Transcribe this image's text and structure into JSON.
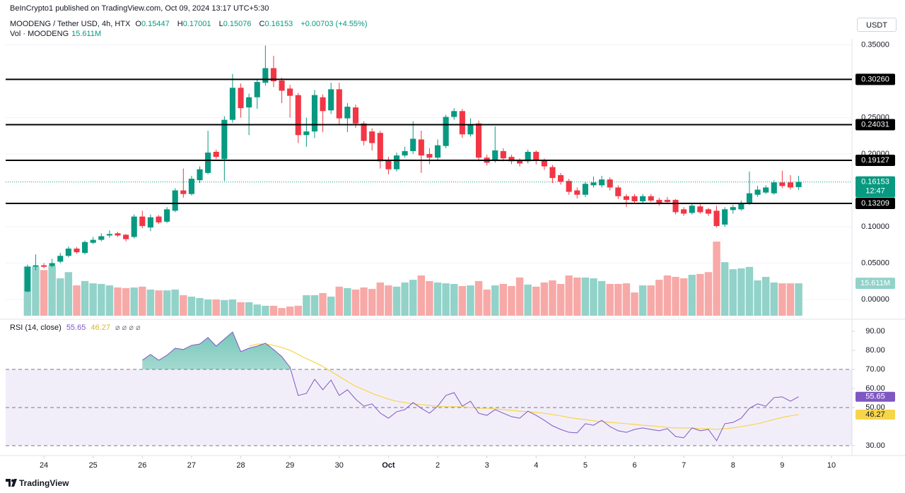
{
  "header": {
    "published": "BeInCrypto1 published on TradingView.com, Oct 09, 2024 13:17 UTC+5:30",
    "symbol": "MOODENG / Tether USD, 4h, HTX",
    "ohlc_labels": [
      "O",
      "H",
      "L",
      "C"
    ],
    "change": "+0.00703 (+4.55%)",
    "currency": "USDT"
  },
  "footer": {
    "brand": "TradingView"
  },
  "chart_data": [
    {
      "type": "candlestick",
      "xlim": [
        -2.66,
        100.5
      ],
      "ylim": [
        -0.0252,
        0.3583
      ],
      "yticks": [
        {
          "value": 0,
          "label": "0.00000"
        },
        {
          "value": 0.05,
          "label": "0.05000"
        },
        {
          "value": 0.1,
          "label": "0.10000"
        },
        {
          "value": 0.2,
          "label": "0.20000"
        },
        {
          "value": 0.25,
          "label": "0.25000"
        },
        {
          "value": 0.35,
          "label": "0.35000"
        }
      ],
      "levels": [
        {
          "value": 0.3026,
          "label": "0.30260"
        },
        {
          "value": 0.24031,
          "label": "0.24031"
        },
        {
          "value": 0.19127,
          "label": "0.19127"
        },
        {
          "value": 0.13209,
          "label": "0.13209"
        }
      ],
      "countdown": "12:47",
      "series": [
        {
          "name": "MOODENG / Tether USD",
          "up_color": "#089981",
          "down_color": "#f23645",
          "open": [
            0.011,
            0.045,
            0.047,
            0.046,
            0.052,
            0.06,
            0.07,
            0.064,
            0.078,
            0.082,
            0.088,
            0.091,
            0.089,
            0.086,
            0.114,
            0.099,
            0.114,
            0.107,
            0.122,
            0.15,
            0.145,
            0.164,
            0.174,
            0.203,
            0.193,
            0.247,
            0.291,
            0.264,
            0.278,
            0.298,
            0.318,
            0.301,
            0.29,
            0.281,
            0.226,
            0.231,
            0.278,
            0.26,
            0.289,
            0.249,
            0.264,
            0.242,
            0.231,
            0.229,
            0.191,
            0.179,
            0.198,
            0.204,
            0.22,
            0.2,
            0.195,
            0.211,
            0.251,
            0.259,
            0.227,
            0.242,
            0.195,
            0.192,
            0.204,
            0.196,
            0.191,
            0.19,
            0.203,
            0.191,
            0.182,
            0.171,
            0.163,
            0.15,
            0.144,
            0.157,
            0.157,
            0.165,
            0.154,
            0.142,
            0.142,
            0.135,
            0.142,
            0.137,
            0.137,
            0.137,
            0.124,
            0.119,
            0.128,
            0.124,
            0.122,
            0.103,
            0.123,
            0.124,
            0.132,
            0.144,
            0.147,
            0.146,
            0.161,
            0.161,
            0.15447
          ],
          "high": [
            0.048,
            0.062,
            0.05,
            0.056,
            0.064,
            0.073,
            0.072,
            0.081,
            0.086,
            0.091,
            0.095,
            0.093,
            0.09,
            0.117,
            0.122,
            0.117,
            0.116,
            0.127,
            0.153,
            0.18,
            0.17,
            0.183,
            0.232,
            0.206,
            0.252,
            0.31,
            0.297,
            0.283,
            0.302,
            0.349,
            0.335,
            0.305,
            0.295,
            0.284,
            0.25,
            0.288,
            0.282,
            0.298,
            0.298,
            0.27,
            0.268,
            0.245,
            0.235,
            0.232,
            0.196,
            0.202,
            0.21,
            0.245,
            0.232,
            0.208,
            0.22,
            0.254,
            0.263,
            0.262,
            0.249,
            0.246,
            0.199,
            0.238,
            0.208,
            0.199,
            0.194,
            0.206,
            0.205,
            0.194,
            0.185,
            0.174,
            0.166,
            0.154,
            0.162,
            0.169,
            0.17,
            0.168,
            0.157,
            0.145,
            0.145,
            0.145,
            0.145,
            0.14,
            0.141,
            0.138,
            0.127,
            0.132,
            0.131,
            0.126,
            0.129,
            0.127,
            0.13,
            0.136,
            0.176,
            0.156,
            0.157,
            0.164,
            0.177,
            0.171,
            0.17001
          ],
          "low": [
            0.01,
            0.04,
            0.043,
            0.044,
            0.05,
            0.058,
            0.063,
            0.062,
            0.076,
            0.08,
            0.085,
            0.086,
            0.08,
            0.084,
            0.098,
            0.094,
            0.104,
            0.105,
            0.12,
            0.14,
            0.143,
            0.16,
            0.172,
            0.193,
            0.163,
            0.243,
            0.25,
            0.226,
            0.262,
            0.294,
            0.292,
            0.27,
            0.25,
            0.215,
            0.21,
            0.222,
            0.23,
            0.255,
            0.24,
            0.23,
            0.236,
            0.212,
            0.205,
            0.18,
            0.172,
            0.176,
            0.195,
            0.2,
            0.174,
            0.186,
            0.192,
            0.208,
            0.247,
            0.222,
            0.224,
            0.19,
            0.184,
            0.188,
            0.19,
            0.186,
            0.183,
            0.187,
            0.186,
            0.178,
            0.16,
            0.158,
            0.144,
            0.139,
            0.141,
            0.154,
            0.154,
            0.15,
            0.138,
            0.127,
            0.132,
            0.133,
            0.134,
            0.129,
            0.131,
            0.117,
            0.115,
            0.117,
            0.118,
            0.115,
            0.099,
            0.1,
            0.118,
            0.122,
            0.13,
            0.141,
            0.145,
            0.144,
            0.153,
            0.151,
            0.15076
          ],
          "close": [
            0.045,
            0.047,
            0.045,
            0.05,
            0.06,
            0.07,
            0.065,
            0.079,
            0.082,
            0.087,
            0.09,
            0.088,
            0.083,
            0.114,
            0.101,
            0.113,
            0.106,
            0.124,
            0.15,
            0.145,
            0.166,
            0.179,
            0.202,
            0.196,
            0.247,
            0.291,
            0.263,
            0.278,
            0.299,
            0.318,
            0.3,
            0.287,
            0.28,
            0.226,
            0.231,
            0.281,
            0.259,
            0.289,
            0.249,
            0.265,
            0.242,
            0.218,
            0.215,
            0.19,
            0.179,
            0.198,
            0.204,
            0.221,
            0.198,
            0.195,
            0.212,
            0.251,
            0.259,
            0.227,
            0.24,
            0.195,
            0.188,
            0.205,
            0.194,
            0.19,
            0.187,
            0.203,
            0.191,
            0.183,
            0.167,
            0.162,
            0.148,
            0.144,
            0.159,
            0.161,
            0.165,
            0.154,
            0.142,
            0.137,
            0.135,
            0.142,
            0.136,
            0.133,
            0.134,
            0.12,
            0.118,
            0.129,
            0.12,
            0.118,
            0.101,
            0.124,
            0.127,
            0.132,
            0.146,
            0.151,
            0.154,
            0.161,
            0.156,
            0.154,
            0.16153
          ]
        }
      ]
    },
    {
      "type": "bar",
      "title": "Vol · MOODENG",
      "legend_value": "15.611M",
      "up_color": "#92d2c9",
      "down_color": "#f7a9a7",
      "ylim": [
        0,
        50
      ],
      "values": [
        23.8,
        23.5,
        22,
        24,
        18,
        21,
        14.6,
        16.7,
        15.6,
        15.3,
        14.6,
        13.6,
        13.3,
        13.6,
        14,
        12.6,
        12.2,
        12.2,
        12.6,
        9.9,
        9.2,
        8.5,
        7.8,
        7.8,
        7.5,
        7.8,
        6.5,
        6.5,
        5.4,
        4.8,
        4.8,
        3.7,
        4.4,
        4.8,
        9.9,
        9.9,
        10.9,
        9.2,
        14,
        13.3,
        12.6,
        13.6,
        12.9,
        16,
        14.6,
        14,
        16,
        17.3,
        19.4,
        16.7,
        16,
        15.6,
        15.3,
        14.3,
        14.6,
        16.7,
        12.6,
        14.6,
        15.3,
        14.3,
        18.4,
        15,
        14,
        16,
        17,
        15.3,
        19.4,
        18.4,
        18.4,
        18,
        16.7,
        15.3,
        15.3,
        15.6,
        11.2,
        14.6,
        14.6,
        17.3,
        19.4,
        18.7,
        18,
        19.7,
        20.1,
        21,
        35.7,
        25.8,
        22.4,
        22.8,
        23.5,
        17,
        18.7,
        16,
        15.6,
        15.6,
        15.611
      ]
    },
    {
      "type": "line",
      "title": "RSI (14, close)",
      "ylim": [
        24.8,
        94.8
      ],
      "yticks": [
        {
          "value": 30,
          "label": "30.00"
        },
        {
          "value": 50,
          "label": "50.00"
        },
        {
          "value": 60,
          "label": "60.00"
        },
        {
          "value": 70,
          "label": "70.00"
        },
        {
          "value": 80,
          "label": "80.00"
        },
        {
          "value": 90,
          "label": "90.00"
        }
      ],
      "band": [
        30,
        70
      ],
      "midline": 50,
      "band_color": "#7e57c2",
      "xticks": [
        {
          "value": 2,
          "label": "24"
        },
        {
          "value": 8,
          "label": "25"
        },
        {
          "value": 14,
          "label": "26"
        },
        {
          "value": 20,
          "label": "27"
        },
        {
          "value": 26,
          "label": "28"
        },
        {
          "value": 32,
          "label": "29"
        },
        {
          "value": 38,
          "label": "30"
        },
        {
          "value": 44,
          "label": "Oct"
        },
        {
          "value": 50,
          "label": "2"
        },
        {
          "value": 56,
          "label": "3"
        },
        {
          "value": 62,
          "label": "4"
        },
        {
          "value": 68,
          "label": "5"
        },
        {
          "value": 74,
          "label": "6"
        },
        {
          "value": 80,
          "label": "7"
        },
        {
          "value": 86,
          "label": "8"
        },
        {
          "value": 92,
          "label": "9"
        },
        {
          "value": 98,
          "label": "10"
        }
      ],
      "series": [
        {
          "color": "#7e57c2",
          "values": [
            null,
            null,
            null,
            null,
            null,
            null,
            null,
            null,
            null,
            null,
            null,
            null,
            null,
            null,
            74.8,
            77.8,
            74.8,
            77.4,
            81.1,
            80.4,
            82.6,
            83.3,
            86.7,
            82.2,
            85.9,
            89.6,
            79.3,
            81.1,
            82.2,
            83.7,
            80.4,
            76.7,
            71.1,
            56.3,
            57.4,
            64.8,
            59.3,
            64.4,
            56.3,
            59.3,
            54.4,
            50.7,
            51.9,
            47.1,
            44.4,
            47.8,
            48.9,
            52.6,
            49.6,
            47,
            50.7,
            56.3,
            57.8,
            50.7,
            53.3,
            47,
            45.9,
            48.9,
            47,
            45.2,
            44.4,
            48.1,
            45.9,
            43.3,
            40.4,
            38.5,
            37,
            36.7,
            41.5,
            40.7,
            43.3,
            40,
            37.8,
            37,
            38.5,
            39.3,
            38.5,
            37.8,
            38.9,
            34.8,
            34.1,
            39.3,
            37.8,
            38.5,
            32.6,
            41.5,
            42.2,
            44.4,
            49.6,
            51.9,
            50.7,
            55.2,
            55.6,
            53.3,
            55.65
          ]
        },
        {
          "color": "#f7d54a",
          "values": [
            null,
            null,
            null,
            null,
            null,
            null,
            null,
            null,
            null,
            null,
            null,
            null,
            null,
            null,
            null,
            null,
            null,
            null,
            null,
            null,
            null,
            null,
            null,
            null,
            null,
            null,
            null,
            82.2,
            83.3,
            83.3,
            82.6,
            81.5,
            80,
            77.8,
            75.6,
            73.7,
            71.5,
            68.9,
            66.3,
            63.7,
            61.1,
            59.3,
            57.4,
            55.9,
            54.4,
            53.3,
            52.6,
            51.9,
            51.5,
            51.1,
            50.7,
            50.4,
            50.4,
            50.4,
            50,
            49.6,
            49.6,
            49.3,
            48.9,
            48.5,
            48.1,
            47.8,
            47.4,
            47,
            46.3,
            45.6,
            44.8,
            44.1,
            43.7,
            43,
            42.6,
            42.2,
            41.9,
            41.5,
            41.1,
            40.7,
            40.4,
            40,
            39.6,
            39.3,
            39.3,
            39.3,
            38.9,
            38.9,
            38.5,
            38.9,
            39.3,
            40,
            40.7,
            41.5,
            42.6,
            43.7,
            44.8,
            45.6,
            46.27
          ]
        }
      ]
    }
  ]
}
